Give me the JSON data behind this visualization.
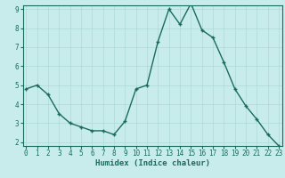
{
  "x": [
    0,
    1,
    2,
    3,
    4,
    5,
    6,
    7,
    8,
    9,
    10,
    11,
    12,
    13,
    14,
    15,
    16,
    17,
    18,
    19,
    20,
    21,
    22,
    23
  ],
  "y": [
    4.8,
    5.0,
    4.5,
    3.5,
    3.0,
    2.8,
    2.6,
    2.6,
    2.4,
    3.1,
    4.8,
    5.0,
    7.3,
    9.0,
    8.2,
    9.3,
    7.9,
    7.5,
    6.2,
    4.8,
    3.9,
    3.2,
    2.4,
    1.8
  ],
  "line_color": "#1a6b5e",
  "marker": "+",
  "bg_color": "#c8ecec",
  "grid_color": "#b0d8d8",
  "xlabel": "Humidex (Indice chaleur)",
  "ylim_min": 2,
  "ylim_max": 9,
  "xlim_min": 0,
  "xlim_max": 23,
  "yticks": [
    2,
    3,
    4,
    5,
    6,
    7,
    8,
    9
  ],
  "xticks": [
    0,
    1,
    2,
    3,
    4,
    5,
    6,
    7,
    8,
    9,
    10,
    11,
    12,
    13,
    14,
    15,
    16,
    17,
    18,
    19,
    20,
    21,
    22,
    23
  ],
  "tick_fontsize": 5.5,
  "xlabel_fontsize": 6.5,
  "linewidth": 1.0,
  "markersize": 3.5
}
